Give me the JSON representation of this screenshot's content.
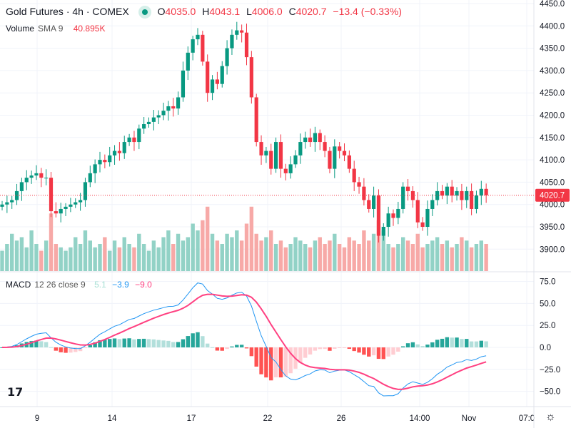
{
  "header": {
    "symbol": "Gold Futures · 4h · COMEX",
    "o_label": "O",
    "o": "4035.0",
    "h_label": "H",
    "h": "4043.1",
    "l_label": "L",
    "l": "4006.0",
    "c_label": "C",
    "c": "4020.7",
    "change": "−13.4 (−0.33%)"
  },
  "volume": {
    "label": "Volume",
    "sma": "SMA 9",
    "value": "40.895K"
  },
  "macd": {
    "label": "MACD",
    "params": "12 26 close 9",
    "hist": "5.1",
    "macd": "−3.9",
    "signal": "−9.0"
  },
  "last_price": "4020.7",
  "price_axis": [
    "4450.0",
    "4400.0",
    "4350.0",
    "4300.0",
    "4250.0",
    "4200.0",
    "4150.0",
    "4100.0",
    "4050.0",
    "4000.0",
    "3950.0",
    "3900.0"
  ],
  "macd_axis": [
    "75.0",
    "50.0",
    "25.0",
    "0.0",
    "−25.0",
    "−50.0"
  ],
  "time_axis": [
    "9",
    "14",
    "17",
    "22",
    "26",
    "14:00",
    "Nov",
    "07:0"
  ],
  "colors": {
    "up": "#089981",
    "down": "#f23645",
    "vol_up": "#92d2c6",
    "vol_down": "#f7a9a7",
    "macd": "#2196f3",
    "signal": "#ff4081"
  },
  "chart_data": {
    "type": "candlestick",
    "price_range": [
      3870,
      4455
    ],
    "closes": [
      4000,
      4005,
      4010,
      4030,
      4050,
      4060,
      4065,
      4070,
      4060,
      4060,
      3985,
      3980,
      3990,
      3995,
      4000,
      4005,
      4010,
      4050,
      4070,
      4090,
      4100,
      4095,
      4110,
      4120,
      4115,
      4140,
      4150,
      4140,
      4170,
      4180,
      4185,
      4195,
      4200,
      4210,
      4220,
      4215,
      4240,
      4300,
      4340,
      4370,
      4380,
      4320,
      4250,
      4280,
      4270,
      4310,
      4350,
      4380,
      4390,
      4385,
      4330,
      4240,
      4140,
      4110,
      4120,
      4080,
      4140,
      4080,
      4070,
      4090,
      4110,
      4140,
      4150,
      4140,
      4160,
      4140,
      4120,
      4080,
      4130,
      4120,
      4110,
      4080,
      4050,
      4040,
      4010,
      3990,
      4020,
      3930,
      3950,
      3980,
      3970,
      3990,
      4040,
      4030,
      4010,
      3960,
      3950,
      3990,
      4010,
      4030,
      4020,
      4040,
      4020,
      4030,
      4010,
      4030,
      3990,
      4020,
      4035,
      4020.7
    ],
    "volumes": [
      30,
      40,
      55,
      45,
      50,
      35,
      60,
      40,
      30,
      45,
      85,
      40,
      35,
      30,
      35,
      50,
      40,
      60,
      45,
      35,
      40,
      50,
      30,
      45,
      35,
      50,
      40,
      35,
      55,
      40,
      30,
      45,
      35,
      50,
      60,
      40,
      55,
      45,
      50,
      70,
      60,
      75,
      95,
      55,
      45,
      40,
      55,
      50,
      60,
      45,
      70,
      95,
      55,
      45,
      50,
      60,
      40,
      45,
      35,
      40,
      50,
      45,
      40,
      35,
      45,
      50,
      40,
      45,
      55,
      40,
      35,
      50,
      45,
      40,
      60,
      45,
      55,
      75,
      60,
      40,
      35,
      40,
      50,
      45,
      40,
      55,
      35,
      40,
      45,
      50,
      40,
      45,
      35,
      40,
      50,
      45,
      35,
      40,
      45,
      40
    ],
    "macd_range": [
      -60,
      80
    ]
  }
}
